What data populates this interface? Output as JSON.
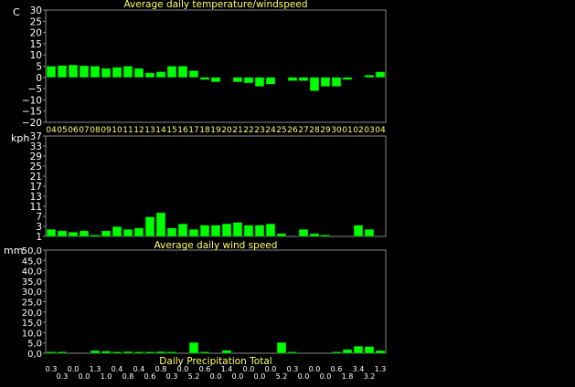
{
  "chart_data": [
    {
      "type": "bar",
      "title": "Average daily temperature/windspeed",
      "ylabel": "C",
      "ylim": [
        -20,
        30
      ],
      "yticks": [
        "30",
        "25",
        "20",
        "15",
        "10",
        "5",
        "0",
        "−5",
        "−10",
        "−15",
        "−20"
      ],
      "categories": [
        "04",
        "05",
        "06",
        "07",
        "08",
        "09",
        "10",
        "11",
        "12",
        "13",
        "14",
        "15",
        "16",
        "17",
        "18",
        "19",
        "20",
        "21",
        "22",
        "23",
        "24",
        "25",
        "26",
        "27",
        "28",
        "29",
        "30",
        "01",
        "02",
        "03",
        "04"
      ],
      "values": [
        5,
        5.3,
        5.5,
        5.2,
        5,
        4,
        4.5,
        5,
        4,
        2,
        2.5,
        5,
        5,
        3,
        -1,
        -2,
        0,
        -2,
        -2.5,
        -4,
        -3,
        0,
        -1.5,
        -1.5,
        -6,
        -4,
        -4,
        -1,
        0,
        1,
        2.5
      ],
      "colors": {
        "bar": "#00ff00",
        "axis": "#888888",
        "text": "#ffffff",
        "title": "#ffff66",
        "cat": "#ffff66"
      }
    },
    {
      "type": "bar",
      "title": "Average daily wind speed",
      "ylabel": "kph",
      "ylim": [
        1,
        37
      ],
      "yticks": [
        "37",
        "33",
        "29",
        "25",
        "21",
        "17",
        "13",
        "11",
        "7",
        "3",
        "1"
      ],
      "values": [
        3.5,
        3,
        2.5,
        3,
        1.5,
        3,
        4.5,
        3.5,
        4,
        8,
        9.5,
        4,
        5.5,
        3.5,
        5,
        5,
        5.5,
        6,
        5,
        5,
        5.5,
        2,
        1,
        3.5,
        2,
        1.5,
        1,
        1,
        5,
        3.5,
        1
      ],
      "colors": {
        "bar": "#00ff00",
        "axis": "#888888",
        "text": "#ffffff",
        "title": "#ffff66"
      }
    },
    {
      "type": "bar",
      "title": "Daily Precipitation Total",
      "ylabel": "mm",
      "ylim": [
        0,
        50
      ],
      "yticks": [
        "50,0",
        "45,0",
        "40,0",
        "35,0",
        "30,0",
        "25,0",
        "20,0",
        "15,0",
        "10,0",
        "5,0",
        "0,0"
      ],
      "values": [
        0.3,
        0.3,
        0,
        0,
        1.3,
        1,
        0.4,
        0.8,
        0.4,
        0.6,
        0.8,
        0.3,
        0,
        5.2,
        0.6,
        0,
        1.4,
        0,
        0,
        0,
        0,
        5.2,
        0.3,
        0,
        0,
        0,
        0.6,
        1.8,
        3.4,
        3.2,
        1.3
      ],
      "value_labels": [
        "0.3",
        "0.3",
        "0.0",
        "0.0",
        "1.3",
        "1.0",
        "0.4",
        "0.8",
        "0.4",
        "0.6",
        "0.8",
        "0.3",
        "0.0",
        "5.2",
        "0.6",
        "0.0",
        "1.4",
        "0.0",
        "0.0",
        "0.0",
        "0.0",
        "5.2",
        "0.3",
        "0.0",
        "0.0",
        "0.0",
        "0.6",
        "1.8",
        "3.4",
        "3.2",
        "1.3"
      ],
      "colors": {
        "bar": "#00ff00",
        "axis": "#888888",
        "text": "#ffffff",
        "title": "#ffff66",
        "labels": "#ffffff"
      }
    }
  ]
}
